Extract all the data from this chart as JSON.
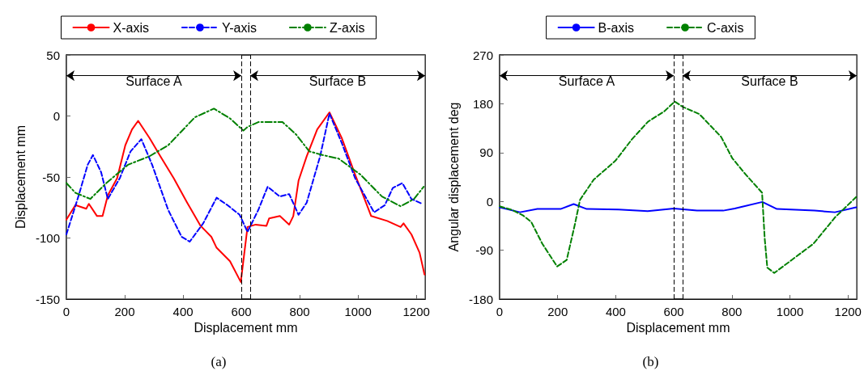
{
  "chart_data": [
    {
      "type": "line",
      "xlabel": "Displacement mm",
      "ylabel": "Displacement mm",
      "annotations": [
        "(a)"
      ],
      "bands": [
        {
          "axis": "x",
          "from": 0,
          "to": 600,
          "label": "Surface A",
          "color": "#ffffff"
        },
        {
          "axis": "x",
          "from": 630,
          "to": 1230,
          "label": "Surface B",
          "color": "#ffffff"
        }
      ],
      "xlim": [
        0,
        1230
      ],
      "ylim": [
        -150,
        50
      ],
      "xticks": [
        0,
        200,
        400,
        600,
        800,
        1000,
        1200
      ],
      "yticks": [
        -150,
        -100,
        -50,
        0,
        50
      ],
      "grid": false,
      "legend": "top",
      "marker": "none",
      "ref_lines": [
        {
          "axis": "x",
          "value": 600,
          "color": "#000000",
          "line_style": "dashed"
        },
        {
          "axis": "x",
          "value": 630,
          "color": "#000000",
          "line_style": "dashed"
        }
      ],
      "series": [
        {
          "name": "X-axis",
          "color": "#ff0000",
          "line_style": "solid",
          "x": [
            0,
            31,
            68,
            77,
            105,
            124,
            142,
            174,
            202,
            225,
            246,
            285,
            322,
            368,
            414,
            460,
            497,
            515,
            561,
            598,
            621,
            649,
            686,
            695,
            732,
            764,
            778,
            796,
            824,
            860,
            902,
            944,
            990,
            1045,
            1100,
            1146,
            1156,
            1183,
            1211,
            1228
          ],
          "values": [
            -85,
            -73,
            -76,
            -72,
            -82,
            -82,
            -65,
            -51,
            -24,
            -11,
            -4,
            -18,
            -33,
            -51,
            -71,
            -90,
            -99,
            -108,
            -119,
            -136,
            -91,
            -89,
            -90,
            -84,
            -82,
            -89,
            -82,
            -53,
            -33,
            -11,
            3,
            -18,
            -48,
            -82,
            -86,
            -91,
            -88,
            -97,
            -112,
            -130
          ]
        },
        {
          "name": "Y-axis",
          "color": "#0000ff",
          "line_style": "dashed",
          "x": [
            0,
            41,
            73,
            91,
            119,
            142,
            183,
            220,
            257,
            294,
            349,
            395,
            423,
            469,
            515,
            552,
            594,
            621,
            658,
            690,
            732,
            764,
            796,
            824,
            870,
            902,
            944,
            990,
            1055,
            1092,
            1119,
            1152,
            1183,
            1220
          ],
          "values": [
            -97,
            -66,
            -40,
            -32,
            -46,
            -68,
            -51,
            -29,
            -19,
            -40,
            -77,
            -99,
            -103,
            -88,
            -67,
            -73,
            -81,
            -95,
            -77,
            -58,
            -66,
            -64,
            -81,
            -71,
            -33,
            2,
            -22,
            -51,
            -79,
            -73,
            -59,
            -55,
            -68,
            -72
          ]
        },
        {
          "name": "Z-axis",
          "color": "#008000",
          "line_style": "dashdot",
          "x": [
            0,
            31,
            82,
            137,
            211,
            285,
            349,
            441,
            506,
            561,
            607,
            621,
            658,
            741,
            787,
            833,
            878,
            934,
            1008,
            1082,
            1146,
            1192,
            1225
          ],
          "values": [
            -55,
            -63,
            -68,
            -55,
            -40,
            -33,
            -24,
            -1,
            6,
            -2,
            -12,
            -9,
            -5,
            -5,
            -15,
            -29,
            -32,
            -35,
            -48,
            -66,
            -74,
            -68,
            -58
          ]
        }
      ]
    },
    {
      "type": "line",
      "xlabel": "Displacement mm",
      "ylabel": "Angular displacement deg",
      "annotations": [
        "(b)"
      ],
      "bands": [
        {
          "axis": "x",
          "from": 0,
          "to": 600,
          "label": "Surface A",
          "color": "#ffffff"
        },
        {
          "axis": "x",
          "from": 630,
          "to": 1230,
          "label": "Surface B",
          "color": "#ffffff"
        }
      ],
      "xlim": [
        0,
        1230
      ],
      "ylim": [
        -180,
        270
      ],
      "xticks": [
        0,
        200,
        400,
        600,
        800,
        1000,
        1200
      ],
      "yticks": [
        -180,
        -90,
        0,
        90,
        180,
        270
      ],
      "grid": false,
      "legend": "top",
      "marker": "none",
      "ref_lines": [
        {
          "axis": "x",
          "value": 600,
          "color": "#000000",
          "line_style": "dashed"
        },
        {
          "axis": "x",
          "value": 630,
          "color": "#000000",
          "line_style": "dashed"
        }
      ],
      "series": [
        {
          "name": "B-axis",
          "color": "#0000ff",
          "line_style": "solid",
          "x": [
            0,
            70,
            130,
            210,
            255,
            300,
            410,
            510,
            600,
            680,
            770,
            810,
            905,
            955,
            1085,
            1155,
            1228
          ],
          "values": [
            -11,
            -20,
            -14,
            -14,
            -5,
            -14,
            -15,
            -18,
            -13,
            -17,
            -17,
            -13,
            -1,
            -14,
            -17,
            -20,
            -11
          ]
        },
        {
          "name": "C-axis",
          "color": "#008000",
          "line_style": "dashed",
          "x": [
            0,
            44,
            81,
            109,
            147,
            198,
            231,
            259,
            277,
            324,
            399,
            455,
            511,
            567,
            603,
            632,
            688,
            763,
            801,
            847,
            904,
            913,
            922,
            946,
            1006,
            1081,
            1156,
            1228
          ],
          "values": [
            -9,
            -16,
            -26,
            -38,
            -78,
            -120,
            -108,
            -43,
            3,
            40,
            75,
            114,
            147,
            166,
            184,
            174,
            161,
            119,
            80,
            50,
            16,
            -68,
            -122,
            -132,
            -108,
            -78,
            -29,
            8
          ]
        }
      ]
    }
  ]
}
